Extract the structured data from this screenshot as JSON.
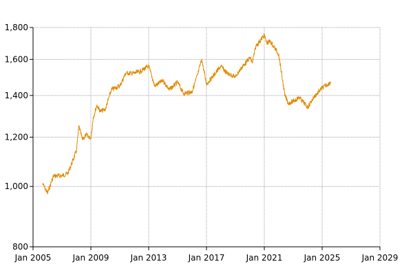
{
  "chart_data": {
    "type": "line",
    "title": "",
    "xlabel": "",
    "ylabel": "",
    "y_scale": "log",
    "grid": true,
    "line_color": "#e08a00",
    "grid_color": "#a0a0a0",
    "xlim": [
      "2005-01",
      "2029-01"
    ],
    "ylim": [
      800,
      1800
    ],
    "x_ticks": [
      "Jan 2005",
      "Jan 2009",
      "Jan 2013",
      "Jan 2017",
      "Jan 2021",
      "Jan 2025",
      "Jan 2029"
    ],
    "y_ticks": [
      "800",
      "1,000",
      "1,200",
      "1,400",
      "1,600",
      "1,800"
    ],
    "series": [
      {
        "x": [
          "2005-09",
          "2006-01",
          "2006-06",
          "2007-01",
          "2007-06",
          "2008-01",
          "2008-03",
          "2008-06",
          "2008-09",
          "2009-01",
          "2009-03",
          "2009-06",
          "2009-09",
          "2010-01",
          "2010-06",
          "2011-01",
          "2011-06",
          "2012-01",
          "2012-06",
          "2013-01",
          "2013-06",
          "2014-01",
          "2014-06",
          "2015-01",
          "2015-06",
          "2016-01",
          "2016-06",
          "2016-09",
          "2017-01",
          "2017-06",
          "2018-01",
          "2018-06",
          "2019-01",
          "2019-06",
          "2020-01",
          "2020-03",
          "2020-06",
          "2021-01",
          "2021-03",
          "2021-06",
          "2022-01",
          "2022-06",
          "2022-09",
          "2023-01",
          "2023-06",
          "2024-01",
          "2024-06",
          "2025-01",
          "2025-06",
          "2025-08"
        ],
        "y": [
          1010,
          975,
          1040,
          1040,
          1050,
          1140,
          1250,
          1190,
          1210,
          1195,
          1290,
          1350,
          1320,
          1330,
          1430,
          1450,
          1520,
          1520,
          1530,
          1560,
          1450,
          1480,
          1430,
          1470,
          1410,
          1420,
          1520,
          1600,
          1460,
          1500,
          1560,
          1520,
          1500,
          1550,
          1610,
          1580,
          1680,
          1750,
          1700,
          1710,
          1630,
          1400,
          1360,
          1370,
          1390,
          1340,
          1390,
          1440,
          1460,
          1470
        ]
      }
    ]
  }
}
